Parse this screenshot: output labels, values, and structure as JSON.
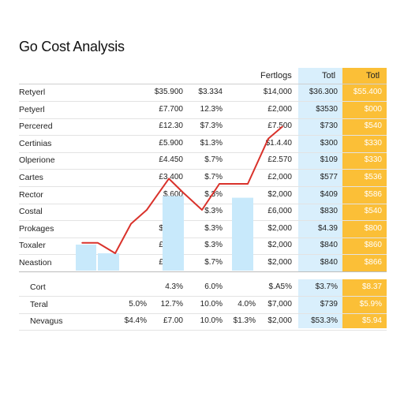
{
  "title": "Go Cost Analysis",
  "headers": {
    "c5": "Fertlogs",
    "c6": "Totl",
    "c7": "Totl"
  },
  "rows": [
    {
      "label": "Retyerl",
      "c2": "$35.900",
      "c3": "$3.334",
      "c5": "$14,000",
      "c6": "$36.300",
      "c7": "$55.400"
    },
    {
      "label": "Petyerl",
      "c2": "£7.700",
      "c3": "12.3%",
      "c5": "£2,000",
      "c6": "$3530",
      "c7": "$000"
    },
    {
      "label": "Percered",
      "c2": "£12.30",
      "c3": "$7.3%",
      "c5": "£7.500",
      "c6": "$730",
      "c7": "$540"
    },
    {
      "label": "Certinias",
      "c2": "£5.900",
      "c3": "$1.3%",
      "c5": "$1.4.40",
      "c6": "$300",
      "c7": "$330"
    },
    {
      "label": "Olperione",
      "c2": "£4.450",
      "c3": "$.7%",
      "c5": "£2.570",
      "c6": "$109",
      "c7": "$330"
    },
    {
      "label": "Cartes",
      "c2": "£3.400",
      "c3": "$.7%",
      "c5": "£2,000",
      "c6": "$577",
      "c7": "$536"
    },
    {
      "label": "Rector",
      "c2": "$.600",
      "c3": "$.3%",
      "c5": "$2,000",
      "c6": "$409",
      "c7": "$586"
    },
    {
      "label": "Costal",
      "c2": "£2.50",
      "c3": "$.3%",
      "c5": "£6,000",
      "c6": "$830",
      "c7": "$540"
    },
    {
      "label": "Prokages",
      "c2": "$4.700",
      "c3": "$.3%",
      "c5": "$2,000",
      "c6": "$4.39",
      "c7": "$800"
    },
    {
      "label": "Toxaler",
      "c2": "£4.000",
      "c3": "$.3%",
      "c5": "$2,000",
      "c6": "$840",
      "c7": "$860"
    },
    {
      "label": "Neastion",
      "c2": "£3.700",
      "c3": "$.7%",
      "c5": "$2,000",
      "c6": "$840",
      "c7": "$866"
    }
  ],
  "summary": [
    {
      "label": "Cort",
      "c1": "",
      "c2": "4.3%",
      "c3": "6.0%",
      "c4": "",
      "c5": "$.A5%",
      "c6": "$3.7%",
      "c7": "$8.37"
    },
    {
      "label": "Teral",
      "c1": "5.0%",
      "c2": "12.7%",
      "c3": "10.0%",
      "c4": "4.0%",
      "c5": "$7,000",
      "c6": "$739",
      "c7": "$5.9%"
    },
    {
      "label": "Nevagus",
      "c1": "$4.4%",
      "c2": "£7.00",
      "c3": "10.0%",
      "c4": "$1.3%",
      "c5": "$2,000",
      "c6": "$53.3%",
      "c7": "$5.94"
    }
  ],
  "chart_data": {
    "type": "bar",
    "title": "",
    "bars": [
      {
        "x": 0,
        "value": 1.5
      },
      {
        "x": 1,
        "value": 1.0
      },
      {
        "x": 2,
        "value": 4.3
      },
      {
        "x": 3,
        "value": 4.2
      },
      {
        "x": 4,
        "value": 5.0
      }
    ],
    "line": {
      "color": "#d9322b",
      "values": [
        1.6,
        1.6,
        1.0,
        2.7,
        3.5,
        5.3,
        4.5,
        3.5,
        5.0,
        5.0,
        7.6,
        8.3
      ]
    },
    "colors": {
      "bar": "#c8e9fb",
      "line": "#d9322b"
    }
  }
}
